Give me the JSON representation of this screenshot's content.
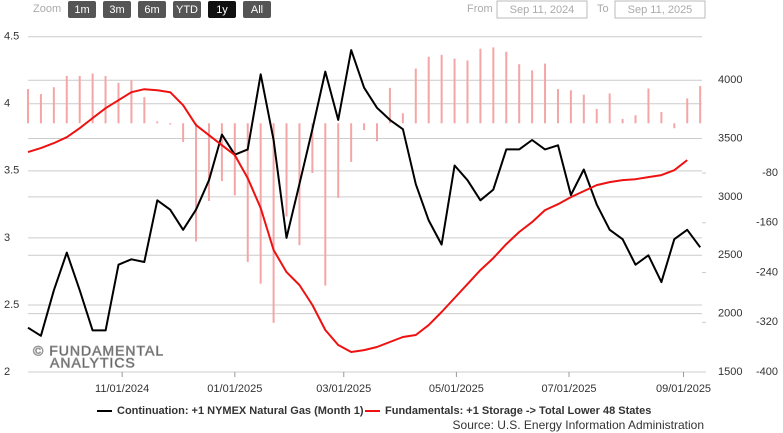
{
  "toolbar": {
    "zoom_label": "Zoom",
    "buttons": [
      "1m",
      "3m",
      "6m",
      "YTD",
      "1y",
      "All"
    ],
    "active": "1y",
    "from_label": "From",
    "from_value": "Sep 11, 2024",
    "to_label": "To",
    "to_value": "Sep 11, 2025"
  },
  "chart_data": {
    "type": "line",
    "x": [
      "09/11/2024",
      "09/18/2024",
      "09/25/2024",
      "10/02/2024",
      "10/09/2024",
      "10/16/2024",
      "10/23/2024",
      "10/30/2024",
      "11/06/2024",
      "11/13/2024",
      "11/20/2024",
      "11/27/2024",
      "12/04/2024",
      "12/11/2024",
      "12/18/2024",
      "12/25/2024",
      "01/01/2025",
      "01/08/2025",
      "01/15/2025",
      "01/22/2025",
      "01/29/2025",
      "02/05/2025",
      "02/12/2025",
      "02/19/2025",
      "02/26/2025",
      "03/05/2025",
      "03/12/2025",
      "03/19/2025",
      "03/26/2025",
      "04/02/2025",
      "04/09/2025",
      "04/16/2025",
      "04/23/2025",
      "04/30/2025",
      "05/07/2025",
      "05/14/2025",
      "05/21/2025",
      "05/28/2025",
      "06/04/2025",
      "06/11/2025",
      "06/18/2025",
      "06/25/2025",
      "07/02/2025",
      "07/09/2025",
      "07/16/2025",
      "07/23/2025",
      "07/30/2025",
      "08/06/2025",
      "08/13/2025",
      "08/20/2025",
      "08/27/2025",
      "09/03/2025",
      "09/10/2025"
    ],
    "series": [
      {
        "name": "Continuation: +1 NYMEX Natural Gas (Month 1)",
        "color": "#000000",
        "axis": "y",
        "values": [
          2.33,
          2.27,
          2.61,
          2.89,
          2.61,
          2.31,
          2.31,
          2.8,
          2.84,
          2.82,
          3.28,
          3.21,
          3.06,
          3.21,
          3.43,
          3.77,
          3.62,
          3.66,
          4.22,
          3.73,
          3.0,
          3.4,
          3.81,
          4.24,
          3.88,
          4.4,
          4.12,
          3.97,
          3.88,
          3.81,
          3.4,
          3.13,
          2.95,
          3.54,
          3.43,
          3.28,
          3.36,
          3.66,
          3.66,
          3.73,
          3.66,
          3.69,
          3.32,
          3.51,
          3.25,
          3.06,
          2.99,
          2.8,
          2.87,
          2.67,
          2.99,
          3.06,
          2.93
        ]
      },
      {
        "name": "Fundamentals: +1 Storage -> Total Lower 48 States",
        "color": "#ee1111",
        "axis": "y2",
        "values": [
          3384,
          3418,
          3461,
          3512,
          3589,
          3675,
          3760,
          3829,
          3897,
          3923,
          3914,
          3897,
          3786,
          3615,
          3529,
          3443,
          3358,
          3161,
          2904,
          2545,
          2356,
          2245,
          2074,
          1860,
          1731,
          1671,
          1688,
          1714,
          1757,
          1800,
          1817,
          1902,
          2014,
          2134,
          2253,
          2373,
          2476,
          2596,
          2699,
          2784,
          2887,
          2938,
          2998,
          3050,
          3101,
          3127,
          3144,
          3152,
          3170,
          3187,
          3229,
          3315,
          null
        ]
      },
      {
        "type": "bar",
        "color": "#f4a6a6",
        "axis": "y3",
        "values": [
          55,
          47,
          58,
          76,
          76,
          80,
          76,
          65,
          69,
          42,
          3,
          -2,
          -30,
          -190,
          -125,
          -93,
          -116,
          -223,
          -258,
          -321,
          -150,
          -196,
          -80,
          -261,
          -120,
          -62,
          -11,
          -29,
          57,
          16,
          88,
          107,
          110,
          104,
          101,
          120,
          122,
          115,
          95,
          85,
          96,
          55,
          53,
          46,
          23,
          48,
          7,
          13,
          56,
          18,
          -8,
          40,
          60
        ]
      }
    ],
    "xlim": [
      "09/11/2024",
      "09/11/2025"
    ],
    "xticks": [
      "11/01/2024",
      "01/01/2025",
      "03/01/2025",
      "05/01/2025",
      "07/01/2025",
      "09/01/2025"
    ],
    "ylim": [
      2,
      4.55
    ],
    "yticks": [
      2,
      2.5,
      3,
      3.5,
      4,
      4.5
    ],
    "y2lim": [
      1500,
      4430
    ],
    "y2ticks": [
      1500,
      2000,
      2500,
      3000,
      3500,
      4000
    ],
    "y3lim": [
      -400,
      150
    ],
    "y3ticks": [
      -400,
      -320,
      -240,
      -160,
      -80
    ],
    "grid": true,
    "watermark": [
      "© FUNDAMENTAL",
      "ANALYTICS"
    ],
    "source": "Source: U.S. Energy Information Administration"
  }
}
